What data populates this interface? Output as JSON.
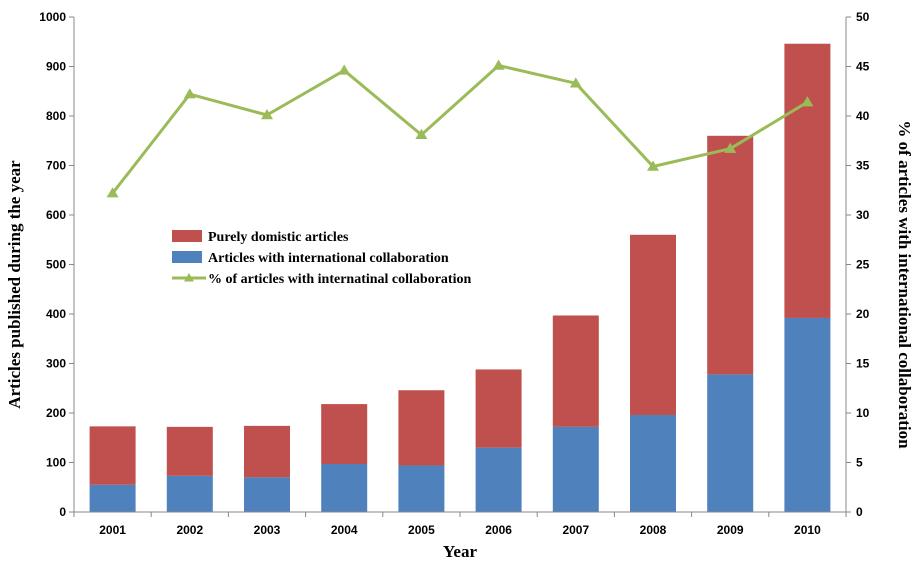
{
  "chart_data": {
    "type": "bar",
    "stacked": true,
    "categories": [
      "2001",
      "2002",
      "2003",
      "2004",
      "2005",
      "2006",
      "2007",
      "2008",
      "2009",
      "2010"
    ],
    "series": [
      {
        "name": "Articles with international collaboration",
        "type": "bar",
        "axis": "left",
        "color": "#4f81bd",
        "values": [
          55,
          73,
          70,
          97,
          94,
          130,
          172,
          196,
          278,
          392
        ]
      },
      {
        "name": "Purely domistic articles",
        "type": "bar",
        "axis": "left",
        "color": "#c0504d",
        "values": [
          118,
          99,
          104,
          121,
          152,
          158,
          225,
          364,
          482,
          554
        ]
      },
      {
        "name": "% of articles with internatinal collaboration",
        "type": "line",
        "axis": "right",
        "color": "#9bbb59",
        "marker": "triangle",
        "values": [
          32.2,
          42.2,
          40.1,
          44.6,
          38.1,
          45.1,
          43.3,
          34.9,
          36.7,
          41.4
        ]
      }
    ],
    "xlabel": "Year",
    "ylabel": "Articles published during the year",
    "y2label": "% of articles with international collaboration",
    "ylim": [
      0,
      1000
    ],
    "y2lim": [
      0,
      50
    ],
    "yticks": [
      "0",
      "100",
      "200",
      "300",
      "400",
      "500",
      "600",
      "700",
      "800",
      "900",
      "1000"
    ],
    "y2ticks": [
      "0",
      "5",
      "10",
      "15",
      "20",
      "25",
      "30",
      "35",
      "40",
      "45",
      "50"
    ],
    "grid": false,
    "legend": {
      "placement": "center-left",
      "order": [
        "Purely domistic articles",
        "Articles with international collaboration",
        "% of articles with internatinal collaboration"
      ]
    }
  }
}
